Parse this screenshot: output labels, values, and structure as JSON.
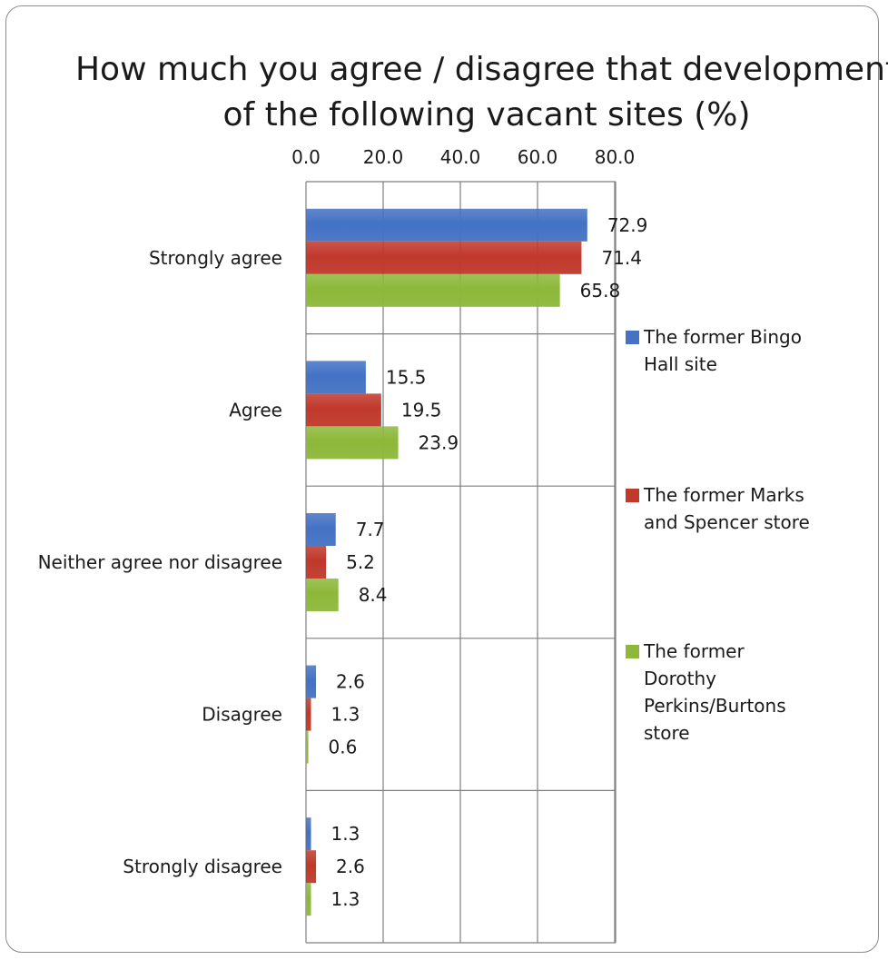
{
  "chart_data": {
    "type": "bar",
    "orientation": "horizontal",
    "title_lines": [
      "How much you agree / disagree that development",
      "of the following vacant sites (%)"
    ],
    "categories": [
      "Strongly agree",
      "Agree",
      "Neither agree nor disagree",
      "Disagree",
      "Strongly disagree"
    ],
    "series": [
      {
        "name_lines": [
          "The former Bingo",
          "Hall site"
        ],
        "color": "#4472C4",
        "values": [
          72.9,
          15.5,
          7.7,
          2.6,
          1.3
        ],
        "labels": [
          "72.9",
          "15.5",
          "7.7",
          "2.6",
          "1.3"
        ]
      },
      {
        "name_lines": [
          "The former Marks",
          "and Spencer store"
        ],
        "color": "#C0392B",
        "values": [
          71.4,
          19.5,
          5.2,
          1.3,
          2.6
        ],
        "labels": [
          "71.4",
          "19.5",
          "5.2",
          "1.3",
          "2.6"
        ]
      },
      {
        "name_lines": [
          "The former",
          "Dorothy",
          "Perkins/Burtons",
          "store"
        ],
        "color": "#8DB83A",
        "values": [
          65.8,
          23.9,
          8.4,
          0.6,
          1.3
        ],
        "labels": [
          "65.8",
          "23.9",
          "8.4",
          "0.6",
          "1.3"
        ]
      }
    ],
    "x_ticks": [
      0,
      20,
      40,
      60,
      80
    ],
    "x_tick_labels": [
      "0.0",
      "20.0",
      "40.0",
      "60.0",
      "80.0"
    ],
    "xlim": [
      0,
      80
    ],
    "x_axis_position": "top",
    "grid": true,
    "legend_position": "right"
  }
}
